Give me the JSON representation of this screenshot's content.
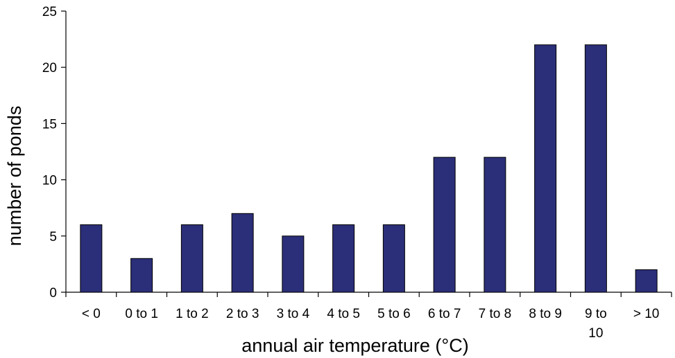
{
  "chart_data": {
    "type": "bar",
    "categories": [
      "< 0",
      "0 to 1",
      "1 to 2",
      "2 to 3",
      "3 to 4",
      "4 to 5",
      "5 to 6",
      "6 to 7",
      "7 to 8",
      "8 to 9",
      "9 to 10",
      "> 10"
    ],
    "category_label_lines": [
      [
        "< 0"
      ],
      [
        "0 to 1"
      ],
      [
        "1 to 2"
      ],
      [
        "2 to 3"
      ],
      [
        "3 to 4"
      ],
      [
        "4 to 5"
      ],
      [
        "5 to 6"
      ],
      [
        "6 to 7"
      ],
      [
        "7 to 8"
      ],
      [
        "8 to 9"
      ],
      [
        "9 to",
        "10"
      ],
      [
        "> 10"
      ]
    ],
    "values": [
      6,
      3,
      6,
      7,
      5,
      6,
      6,
      12,
      12,
      22,
      22,
      2
    ],
    "title": "",
    "xlabel": "annual air temperature (°C)",
    "ylabel": "number of ponds",
    "ylim": [
      0,
      25
    ],
    "yticks": [
      0,
      5,
      10,
      15,
      20,
      25
    ],
    "grid": false,
    "legend": "none",
    "bar_color": "#2b2e78",
    "bar_edge_color": "#000000"
  }
}
